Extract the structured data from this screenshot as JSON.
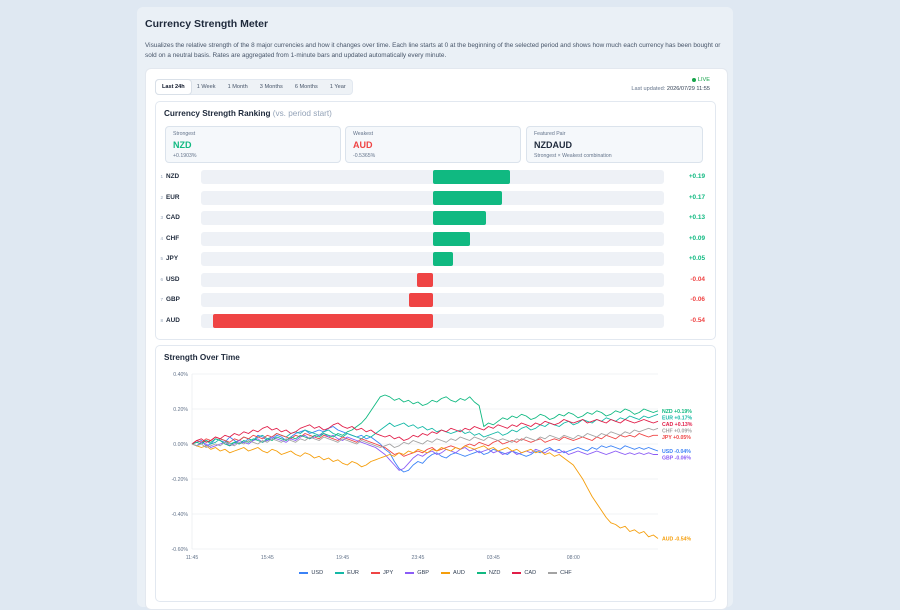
{
  "header": {
    "title": "Currency Strength Meter",
    "description": "Visualizes the relative strength of the 8 major currencies and how it changes over time. Each line starts at 0 at the beginning of the selected period and shows how much each currency has been bought or sold on a neutral basis. Rates are aggregated from 1-minute bars and updated automatically every minute."
  },
  "tabs": [
    {
      "label": "Last 24h",
      "active": true
    },
    {
      "label": "1 Week",
      "active": false
    },
    {
      "label": "1 Month",
      "active": false
    },
    {
      "label": "3 Months",
      "active": false
    },
    {
      "label": "6 Months",
      "active": false
    },
    {
      "label": "1 Year",
      "active": false
    }
  ],
  "status": {
    "live_label": "LIVE",
    "updated_label": "Last updated:",
    "updated_value": "2026/07/29 11:55"
  },
  "ranking": {
    "title": "Currency Strength Ranking",
    "subtitle": "(vs. period start)",
    "strongest": {
      "label": "Strongest",
      "code": "NZD",
      "value": "+0.1903%"
    },
    "weakest": {
      "label": "Weakest",
      "code": "AUD",
      "value": "-0.5365%"
    },
    "featured": {
      "label": "Featured Pair",
      "code": "NZDAUD",
      "note": "Strongest × Weakest combination"
    },
    "rows": [
      {
        "rank": "1",
        "code": "NZD",
        "value": 0.19,
        "label": "+0.19"
      },
      {
        "rank": "2",
        "code": "EUR",
        "value": 0.17,
        "label": "+0.17"
      },
      {
        "rank": "3",
        "code": "CAD",
        "value": 0.13,
        "label": "+0.13"
      },
      {
        "rank": "4",
        "code": "CHF",
        "value": 0.09,
        "label": "+0.09"
      },
      {
        "rank": "5",
        "code": "JPY",
        "value": 0.05,
        "label": "+0.05"
      },
      {
        "rank": "6",
        "code": "USD",
        "value": -0.04,
        "label": "-0.04"
      },
      {
        "rank": "7",
        "code": "GBP",
        "value": -0.06,
        "label": "-0.06"
      },
      {
        "rank": "8",
        "code": "AUD",
        "value": -0.54,
        "label": "-0.54"
      }
    ],
    "scale_max": 0.54,
    "colors": {
      "positive": "#10b981",
      "negative": "#ef4444"
    }
  },
  "chart_data": {
    "type": "line",
    "title": "Strength Over Time",
    "ylim": [
      -0.6,
      0.4
    ],
    "y_ticks": [
      "0.40%",
      "0.20%",
      "0.00%",
      "-0.20%",
      "-0.40%",
      "-0.60%"
    ],
    "x_ticks": [
      "11:45",
      "15:45",
      "19:45",
      "23:45",
      "03:45",
      "08:00"
    ],
    "x_tick_positions": [
      0,
      16,
      32,
      48,
      64,
      81
    ],
    "point_count": 100,
    "grid": true,
    "legend_position": "bottom",
    "series": [
      {
        "name": "USD",
        "color": "#3b82f6",
        "end_label": "USD -0.04%",
        "values": [
          0,
          0.01,
          0.02,
          -0.01,
          0,
          0.03,
          0.02,
          0.01,
          0.04,
          0.02,
          0,
          0.01,
          0.03,
          0.02,
          0.05,
          0.04,
          0.02,
          0.03,
          0.05,
          0.04,
          0.02,
          0.04,
          0.06,
          0.07,
          0.08,
          0.06,
          0.07,
          0.08,
          0.07,
          0.09,
          0.1,
          0.08,
          0.07,
          0.06,
          0.05,
          0.04,
          0.05,
          0.03,
          0.04,
          0.02,
          0,
          -0.03,
          -0.05,
          -0.1,
          -0.14,
          -0.16,
          -0.15,
          -0.12,
          -0.1,
          -0.11,
          -0.08,
          -0.06,
          -0.05,
          -0.07,
          -0.08,
          -0.06,
          -0.05,
          -0.06,
          -0.07,
          -0.06,
          -0.05,
          -0.04,
          -0.06,
          -0.05,
          -0.03,
          -0.04,
          -0.05,
          -0.06,
          -0.04,
          -0.05,
          -0.06,
          -0.07,
          -0.06,
          -0.04,
          -0.05,
          -0.03,
          -0.02,
          -0.04,
          -0.03,
          -0.05,
          -0.04,
          -0.03,
          -0.02,
          -0.03,
          -0.04,
          -0.02,
          -0.03,
          -0.01,
          -0.02,
          -0.01,
          -0.02,
          -0.03,
          -0.01,
          -0.02,
          -0.03,
          -0.02,
          -0.03,
          -0.02,
          -0.03,
          -0.04
        ]
      },
      {
        "name": "EUR",
        "color": "#14b8a6",
        "end_label": "EUR +0.17%",
        "values": [
          0,
          -0.01,
          0.01,
          0.02,
          0,
          0.01,
          0.03,
          0.02,
          0,
          0.01,
          0.02,
          0.04,
          0.03,
          0.02,
          0.04,
          0.05,
          0.03,
          0.04,
          0.06,
          0.05,
          0.04,
          0.06,
          0.07,
          0.06,
          0.08,
          0.07,
          0.06,
          0.05,
          0.07,
          0.08,
          0.06,
          0.05,
          0.04,
          0.06,
          0.05,
          0.04,
          0.03,
          0.05,
          0.04,
          0.06,
          0.08,
          0.1,
          0.12,
          0.1,
          0.11,
          0.12,
          0.1,
          0.11,
          0.09,
          0.1,
          0.08,
          0.09,
          0.07,
          0.08,
          0.07,
          0.06,
          0.07,
          0.08,
          0.06,
          0.07,
          0.05,
          0.06,
          0.04,
          0.05,
          0.06,
          0.07,
          0.05,
          0.06,
          0.08,
          0.07,
          0.09,
          0.1,
          0.08,
          0.09,
          0.11,
          0.1,
          0.12,
          0.11,
          0.1,
          0.12,
          0.13,
          0.11,
          0.12,
          0.14,
          0.13,
          0.12,
          0.14,
          0.13,
          0.15,
          0.14,
          0.13,
          0.15,
          0.14,
          0.16,
          0.15,
          0.14,
          0.16,
          0.15,
          0.16,
          0.17
        ]
      },
      {
        "name": "JPY",
        "color": "#ef4444",
        "end_label": "JPY +0.05%",
        "values": [
          0,
          0.02,
          0.01,
          0.03,
          0.02,
          0.04,
          0.03,
          0.02,
          0.01,
          0.03,
          0.02,
          0.04,
          0.03,
          0.05,
          0.04,
          0.03,
          0.05,
          0.04,
          0.06,
          0.05,
          0.04,
          0.03,
          0.05,
          0.04,
          0.06,
          0.05,
          0.04,
          0.03,
          0.05,
          0.04,
          0.03,
          0.02,
          0.04,
          0.03,
          0.02,
          0.01,
          0.03,
          0.02,
          0.01,
          0,
          -0.01,
          -0.02,
          -0.04,
          -0.06,
          -0.05,
          -0.07,
          -0.06,
          -0.05,
          -0.04,
          -0.05,
          -0.03,
          -0.02,
          -0.04,
          -0.03,
          -0.02,
          -0.01,
          -0.02,
          -0.03,
          -0.01,
          0,
          -0.01,
          0.01,
          0,
          -0.01,
          0.01,
          0.02,
          0,
          0.01,
          0.02,
          0.01,
          0.03,
          0.02,
          0.01,
          0.02,
          0.03,
          0.01,
          0.02,
          0.03,
          0.02,
          0.04,
          0.03,
          0.02,
          0.03,
          0.04,
          0.03,
          0.02,
          0.04,
          0.03,
          0.05,
          0.04,
          0.03,
          0.05,
          0.04,
          0.05,
          0.04,
          0.06,
          0.05,
          0.04,
          0.05,
          0.05
        ]
      },
      {
        "name": "GBP",
        "color": "#8b5cf6",
        "end_label": "GBP -0.06%",
        "values": [
          0,
          -0.01,
          0.01,
          0,
          -0.02,
          -0.01,
          0,
          0.01,
          -0.01,
          0,
          0.02,
          0.01,
          0,
          0.02,
          0.03,
          0.01,
          0.02,
          0.04,
          0.03,
          0.02,
          0.01,
          0.03,
          0.02,
          0.04,
          0.05,
          0.03,
          0.04,
          0.05,
          0.06,
          0.04,
          0.05,
          0.03,
          0.02,
          0.04,
          0.03,
          0.02,
          0.01,
          0,
          -0.01,
          -0.02,
          -0.04,
          -0.06,
          -0.09,
          -0.12,
          -0.15,
          -0.14,
          -0.11,
          -0.08,
          -0.06,
          -0.07,
          -0.05,
          -0.04,
          -0.06,
          -0.05,
          -0.03,
          -0.04,
          -0.05,
          -0.03,
          -0.02,
          -0.04,
          -0.03,
          -0.05,
          -0.04,
          -0.03,
          -0.05,
          -0.04,
          -0.06,
          -0.05,
          -0.04,
          -0.06,
          -0.05,
          -0.04,
          -0.05,
          -0.03,
          -0.04,
          -0.05,
          -0.03,
          -0.04,
          -0.05,
          -0.04,
          -0.06,
          -0.05,
          -0.04,
          -0.05,
          -0.06,
          -0.05,
          -0.04,
          -0.05,
          -0.06,
          -0.05,
          -0.04,
          -0.05,
          -0.06,
          -0.05,
          -0.06,
          -0.05,
          -0.06,
          -0.05,
          -0.06,
          -0.06
        ]
      },
      {
        "name": "AUD",
        "color": "#f59e0b",
        "end_label": "AUD -0.54%",
        "values": [
          0,
          -0.01,
          -0.02,
          -0.01,
          -0.03,
          -0.02,
          -0.04,
          -0.03,
          -0.05,
          -0.04,
          -0.03,
          -0.02,
          -0.04,
          -0.03,
          -0.02,
          -0.04,
          -0.05,
          -0.03,
          -0.04,
          -0.06,
          -0.05,
          -0.04,
          -0.06,
          -0.07,
          -0.05,
          -0.06,
          -0.08,
          -0.07,
          -0.09,
          -0.08,
          -0.1,
          -0.09,
          -0.11,
          -0.12,
          -0.1,
          -0.11,
          -0.13,
          -0.12,
          -0.1,
          -0.09,
          -0.08,
          -0.07,
          -0.06,
          -0.07,
          -0.05,
          -0.06,
          -0.04,
          -0.05,
          -0.03,
          -0.04,
          -0.05,
          -0.03,
          -0.04,
          -0.02,
          -0.03,
          -0.04,
          -0.02,
          -0.03,
          -0.01,
          -0.02,
          -0.03,
          -0.02,
          -0.01,
          -0.03,
          -0.02,
          -0.04,
          -0.03,
          -0.02,
          -0.04,
          -0.03,
          -0.05,
          -0.04,
          -0.03,
          -0.05,
          -0.04,
          -0.06,
          -0.05,
          -0.07,
          -0.06,
          -0.08,
          -0.1,
          -0.12,
          -0.16,
          -0.2,
          -0.25,
          -0.3,
          -0.34,
          -0.38,
          -0.42,
          -0.45,
          -0.46,
          -0.48,
          -0.47,
          -0.5,
          -0.49,
          -0.51,
          -0.5,
          -0.53,
          -0.52,
          -0.54
        ]
      },
      {
        "name": "NZD",
        "color": "#10b981",
        "end_label": "NZD +0.19%",
        "values": [
          0,
          0.01,
          0,
          0.02,
          0.01,
          0.03,
          0.02,
          0,
          -0.01,
          0.01,
          0,
          0.02,
          0.01,
          0.03,
          0.02,
          0.01,
          0.03,
          0.02,
          0.04,
          0.03,
          0.02,
          0.04,
          0.03,
          0.05,
          0.04,
          0.03,
          0.05,
          0.04,
          0.06,
          0.05,
          0.04,
          0.06,
          0.05,
          0.07,
          0.08,
          0.1,
          0.12,
          0.15,
          0.19,
          0.23,
          0.27,
          0.28,
          0.27,
          0.25,
          0.26,
          0.24,
          0.25,
          0.23,
          0.24,
          0.22,
          0.23,
          0.25,
          0.24,
          0.26,
          0.27,
          0.25,
          0.24,
          0.26,
          0.25,
          0.27,
          0.24,
          0.22,
          0.1,
          0.12,
          0.11,
          0.13,
          0.15,
          0.14,
          0.16,
          0.15,
          0.17,
          0.16,
          0.14,
          0.15,
          0.17,
          0.16,
          0.14,
          0.15,
          0.17,
          0.16,
          0.18,
          0.17,
          0.15,
          0.16,
          0.18,
          0.17,
          0.19,
          0.18,
          0.16,
          0.17,
          0.19,
          0.18,
          0.2,
          0.19,
          0.17,
          0.18,
          0.2,
          0.19,
          0.18,
          0.19
        ]
      },
      {
        "name": "CAD",
        "color": "#e11d48",
        "end_label": "CAD +0.13%",
        "values": [
          0,
          0.02,
          0.03,
          0.01,
          0.02,
          0.04,
          0.03,
          0.05,
          0.04,
          0.06,
          0.05,
          0.07,
          0.06,
          0.08,
          0.07,
          0.09,
          0.1,
          0.08,
          0.09,
          0.07,
          0.08,
          0.06,
          0.07,
          0.09,
          0.1,
          0.11,
          0.09,
          0.1,
          0.08,
          0.09,
          0.11,
          0.12,
          0.1,
          0.09,
          0.1,
          0.08,
          0.09,
          0.07,
          0.08,
          0.06,
          0.05,
          0.04,
          0.05,
          0.03,
          0.04,
          0.02,
          0.03,
          0.05,
          0.04,
          0.06,
          0.05,
          0.07,
          0.06,
          0.08,
          0.07,
          0.09,
          0.08,
          0.07,
          0.09,
          0.08,
          0.1,
          0.09,
          0.08,
          0.1,
          0.09,
          0.11,
          0.1,
          0.09,
          0.11,
          0.1,
          0.12,
          0.11,
          0.1,
          0.12,
          0.11,
          0.13,
          0.12,
          0.11,
          0.12,
          0.14,
          0.13,
          0.12,
          0.13,
          0.14,
          0.12,
          0.13,
          0.14,
          0.13,
          0.12,
          0.14,
          0.13,
          0.12,
          0.14,
          0.13,
          0.12,
          0.13,
          0.14,
          0.13,
          0.12,
          0.13
        ]
      },
      {
        "name": "CHF",
        "color": "#a3a3a3",
        "end_label": "CHF +0.09%",
        "values": [
          0,
          -0.01,
          0,
          -0.02,
          -0.01,
          0,
          -0.01,
          0.01,
          0,
          -0.01,
          0.01,
          0,
          0.02,
          0.01,
          0,
          0.02,
          0.01,
          0.03,
          0.02,
          0.01,
          0.03,
          0.02,
          0.01,
          0.03,
          0.02,
          0.04,
          0.03,
          0.02,
          0.04,
          0.03,
          0.02,
          0.01,
          0.03,
          0.02,
          0.01,
          0,
          0.02,
          0.01,
          0,
          -0.01,
          -0.02,
          -0.01,
          0,
          -0.02,
          -0.01,
          0.01,
          0,
          0.02,
          0.01,
          0,
          0.02,
          0.01,
          0.03,
          0.02,
          0.01,
          0.03,
          0.02,
          0.04,
          0.03,
          0.02,
          0.04,
          0.03,
          0.02,
          0.04,
          0.03,
          0.02,
          0.03,
          0.02,
          0.01,
          0.03,
          0.02,
          0.04,
          0.03,
          0.02,
          0.04,
          0.03,
          0.05,
          0.04,
          0.03,
          0.05,
          0.04,
          0.03,
          0.05,
          0.04,
          0.06,
          0.05,
          0.04,
          0.06,
          0.05,
          0.07,
          0.06,
          0.05,
          0.07,
          0.06,
          0.08,
          0.07,
          0.08,
          0.09,
          0.08,
          0.09
        ]
      }
    ]
  }
}
